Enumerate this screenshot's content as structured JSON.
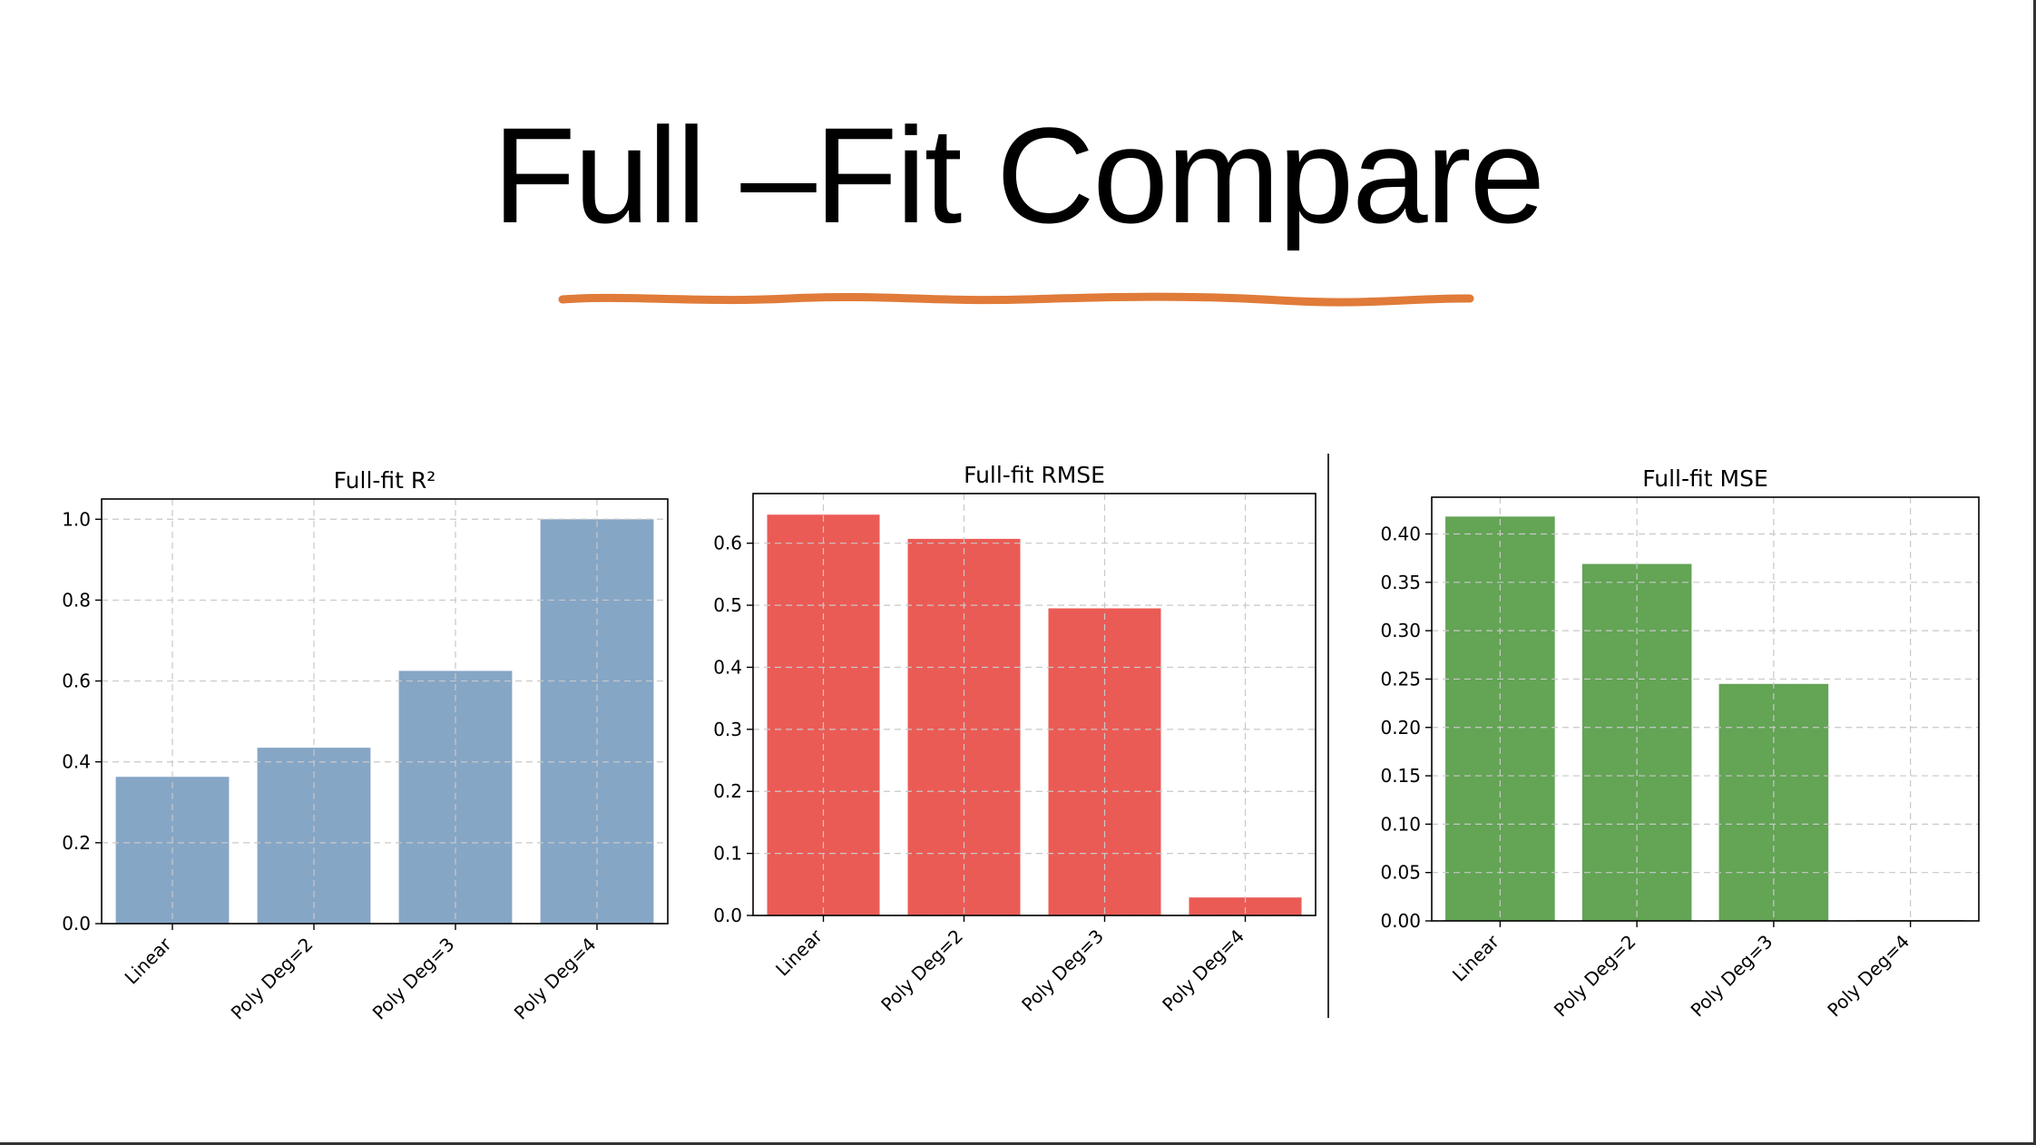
{
  "slide": {
    "title": "Full –Fit Compare",
    "accent_color": "#e07b39"
  },
  "chart_data": [
    {
      "type": "bar",
      "title": "Full-fit R²",
      "categories": [
        "Linear",
        "Poly Deg=2",
        "Poly Deg=3",
        "Poly Deg=4"
      ],
      "values": [
        0.363,
        0.435,
        0.625,
        1.0
      ],
      "ylim": [
        0,
        1.05
      ],
      "yticks": [
        "0.0",
        "0.2",
        "0.4",
        "0.6",
        "0.8",
        "1.0"
      ],
      "ytick_values": [
        0,
        0.2,
        0.4,
        0.6,
        0.8,
        1.0
      ],
      "grid": true,
      "color": "#86a6c6"
    },
    {
      "type": "bar",
      "title": "Full-fit RMSE",
      "categories": [
        "Linear",
        "Poly Deg=2",
        "Poly Deg=3",
        "Poly Deg=4"
      ],
      "values": [
        0.646,
        0.607,
        0.495,
        0.029
      ],
      "ylim": [
        0,
        0.68
      ],
      "yticks": [
        "0.0",
        "0.1",
        "0.2",
        "0.3",
        "0.4",
        "0.5",
        "0.6"
      ],
      "ytick_values": [
        0,
        0.1,
        0.2,
        0.3,
        0.4,
        0.5,
        0.6
      ],
      "grid": true,
      "color": "#eb5b55"
    },
    {
      "type": "bar",
      "title": "Full-fit MSE",
      "categories": [
        "Linear",
        "Poly Deg=2",
        "Poly Deg=3",
        "Poly Deg=4"
      ],
      "values": [
        0.418,
        0.369,
        0.245,
        0.0008
      ],
      "ylim": [
        0,
        0.438
      ],
      "yticks": [
        "0.00",
        "0.05",
        "0.10",
        "0.15",
        "0.20",
        "0.25",
        "0.30",
        "0.35",
        "0.40"
      ],
      "ytick_values": [
        0,
        0.05,
        0.1,
        0.15,
        0.2,
        0.25,
        0.3,
        0.35,
        0.4
      ],
      "grid": true,
      "color": "#63a455"
    }
  ]
}
